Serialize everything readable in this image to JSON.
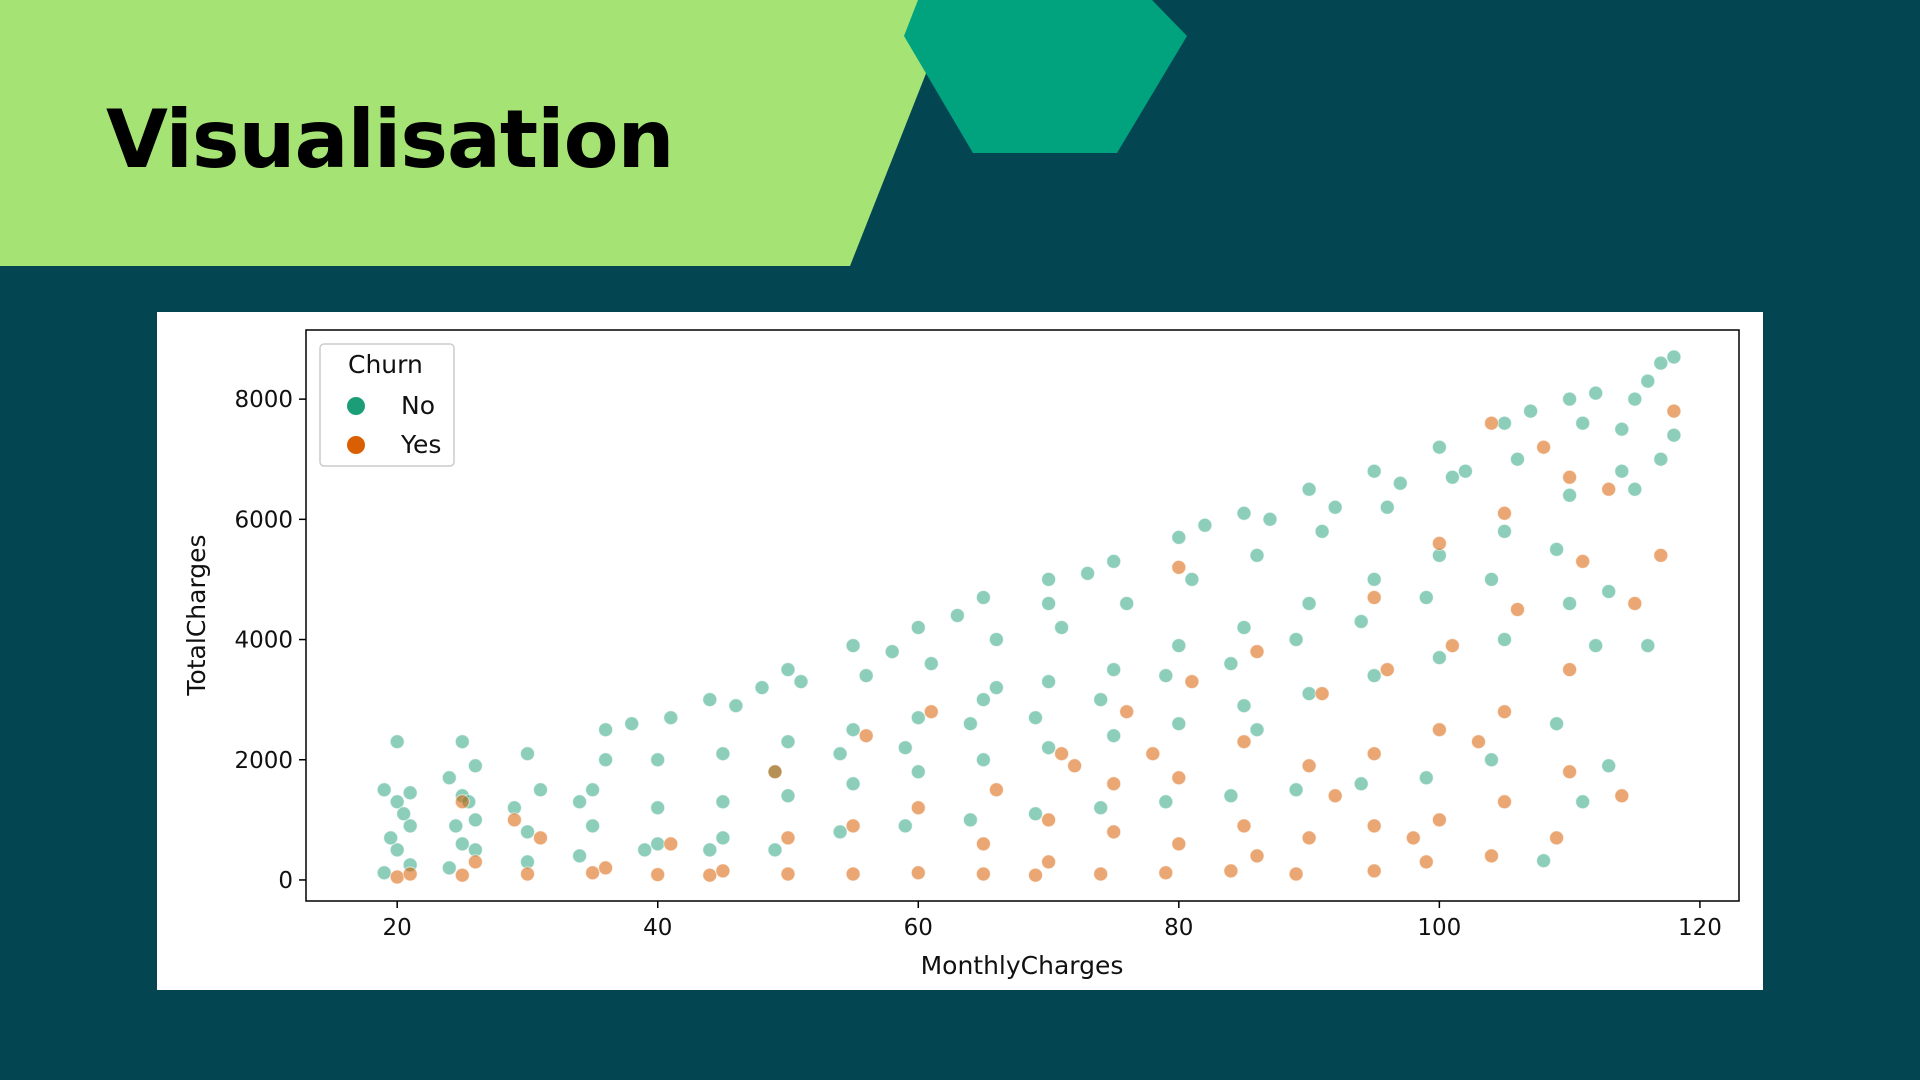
{
  "slide": {
    "title": "Visualisation",
    "colors": {
      "background": "#034652",
      "banner_green": "#a4e374",
      "hexagon": "#00a37e"
    }
  },
  "chart_data": {
    "type": "scatter",
    "title": "",
    "xlabel": "MonthlyCharges",
    "ylabel": "TotalCharges",
    "xlim": [
      13,
      123
    ],
    "ylim": [
      -350,
      9150
    ],
    "xticks": [
      20,
      40,
      60,
      80,
      100,
      120
    ],
    "yticks": [
      0,
      2000,
      4000,
      6000,
      8000
    ],
    "grid": false,
    "legend": {
      "title": "Churn",
      "placement": "top-left"
    },
    "series": [
      {
        "name": "No",
        "color": "#1b9e77",
        "opacity": 0.5,
        "points": [
          [
            19,
            120
          ],
          [
            20,
            500
          ],
          [
            21,
            900
          ],
          [
            20,
            1300
          ],
          [
            19,
            1500
          ],
          [
            21,
            250
          ],
          [
            20,
            2300
          ],
          [
            19.5,
            700
          ],
          [
            20.5,
            1100
          ],
          [
            21,
            1450
          ],
          [
            24,
            200
          ],
          [
            25,
            600
          ],
          [
            26,
            1000
          ],
          [
            25,
            1400
          ],
          [
            24,
            1700
          ],
          [
            26,
            1900
          ],
          [
            25,
            2300
          ],
          [
            24.5,
            900
          ],
          [
            25.5,
            1300
          ],
          [
            26,
            500
          ],
          [
            30,
            300
          ],
          [
            30,
            800
          ],
          [
            29,
            1200
          ],
          [
            31,
            1500
          ],
          [
            30,
            2100
          ],
          [
            34,
            400
          ],
          [
            35,
            900
          ],
          [
            35,
            1500
          ],
          [
            36,
            2000
          ],
          [
            34,
            1300
          ],
          [
            36,
            2500
          ],
          [
            39,
            500
          ],
          [
            40,
            1200
          ],
          [
            40,
            2000
          ],
          [
            41,
            2700
          ],
          [
            40,
            600
          ],
          [
            44,
            500
          ],
          [
            45,
            1300
          ],
          [
            45,
            2100
          ],
          [
            46,
            2900
          ],
          [
            44,
            3000
          ],
          [
            45,
            700
          ],
          [
            49,
            500
          ],
          [
            50,
            1400
          ],
          [
            50,
            2300
          ],
          [
            51,
            3300
          ],
          [
            50,
            3500
          ],
          [
            49,
            1800
          ],
          [
            54,
            800
          ],
          [
            55,
            1600
          ],
          [
            55,
            2500
          ],
          [
            56,
            3400
          ],
          [
            55,
            3900
          ],
          [
            54,
            2100
          ],
          [
            59,
            900
          ],
          [
            60,
            1800
          ],
          [
            60,
            2700
          ],
          [
            61,
            3600
          ],
          [
            60,
            4200
          ],
          [
            59,
            2200
          ],
          [
            64,
            1000
          ],
          [
            65,
            2000
          ],
          [
            65,
            3000
          ],
          [
            66,
            4000
          ],
          [
            65,
            4700
          ],
          [
            64,
            2600
          ],
          [
            69,
            1100
          ],
          [
            70,
            2200
          ],
          [
            70,
            3300
          ],
          [
            71,
            4200
          ],
          [
            70,
            5000
          ],
          [
            69,
            2700
          ],
          [
            74,
            1200
          ],
          [
            75,
            2400
          ],
          [
            75,
            3500
          ],
          [
            76,
            4600
          ],
          [
            75,
            5300
          ],
          [
            74,
            3000
          ],
          [
            79,
            1300
          ],
          [
            80,
            2600
          ],
          [
            80,
            3900
          ],
          [
            81,
            5000
          ],
          [
            80,
            5700
          ],
          [
            79,
            3400
          ],
          [
            84,
            1400
          ],
          [
            85,
            2900
          ],
          [
            85,
            4200
          ],
          [
            86,
            5400
          ],
          [
            85,
            6100
          ],
          [
            84,
            3600
          ],
          [
            89,
            1500
          ],
          [
            90,
            3100
          ],
          [
            90,
            4600
          ],
          [
            91,
            5800
          ],
          [
            90,
            6500
          ],
          [
            89,
            4000
          ],
          [
            94,
            1600
          ],
          [
            95,
            3400
          ],
          [
            95,
            5000
          ],
          [
            96,
            6200
          ],
          [
            95,
            6800
          ],
          [
            94,
            4300
          ],
          [
            99,
            1700
          ],
          [
            100,
            3700
          ],
          [
            100,
            5400
          ],
          [
            101,
            6700
          ],
          [
            100,
            7200
          ],
          [
            99,
            4700
          ],
          [
            104,
            2000
          ],
          [
            105,
            4000
          ],
          [
            105,
            5800
          ],
          [
            106,
            7000
          ],
          [
            105,
            7600
          ],
          [
            104,
            5000
          ],
          [
            109,
            2600
          ],
          [
            110,
            4600
          ],
          [
            110,
            6400
          ],
          [
            111,
            7600
          ],
          [
            110,
            8000
          ],
          [
            109,
            5500
          ],
          [
            113,
            4800
          ],
          [
            114,
            6800
          ],
          [
            115,
            8000
          ],
          [
            116,
            8300
          ],
          [
            117,
            8600
          ],
          [
            118,
            8700
          ],
          [
            117,
            7000
          ],
          [
            114,
            7500
          ],
          [
            112,
            3900
          ],
          [
            116,
            3900
          ],
          [
            108,
            320
          ],
          [
            111,
            1300
          ],
          [
            113,
            1900
          ],
          [
            115,
            6500
          ],
          [
            118,
            7400
          ],
          [
            70,
            4600
          ],
          [
            82,
            5900
          ],
          [
            92,
            6200
          ],
          [
            102,
            6800
          ],
          [
            107,
            7800
          ],
          [
            58,
            3800
          ],
          [
            48,
            3200
          ],
          [
            38,
            2600
          ],
          [
            63,
            4400
          ],
          [
            73,
            5100
          ],
          [
            87,
            6000
          ],
          [
            97,
            6600
          ],
          [
            112,
            8100
          ],
          [
            66,
            3200
          ],
          [
            86,
            2500
          ]
        ]
      },
      {
        "name": "Yes",
        "color": "#d95f02",
        "opacity": 0.55,
        "points": [
          [
            20,
            50
          ],
          [
            21,
            100
          ],
          [
            25,
            80
          ],
          [
            26,
            300
          ],
          [
            25,
            1300
          ],
          [
            29,
            1000
          ],
          [
            30,
            100
          ],
          [
            31,
            700
          ],
          [
            35,
            120
          ],
          [
            36,
            200
          ],
          [
            40,
            90
          ],
          [
            41,
            600
          ],
          [
            44,
            80
          ],
          [
            45,
            150
          ],
          [
            50,
            100
          ],
          [
            50,
            700
          ],
          [
            49,
            1800
          ],
          [
            55,
            100
          ],
          [
            55,
            900
          ],
          [
            56,
            2400
          ],
          [
            60,
            120
          ],
          [
            60,
            1200
          ],
          [
            61,
            2800
          ],
          [
            65,
            100
          ],
          [
            65,
            600
          ],
          [
            69,
            80
          ],
          [
            70,
            300
          ],
          [
            70,
            1000
          ],
          [
            71,
            2100
          ],
          [
            74,
            100
          ],
          [
            75,
            800
          ],
          [
            75,
            1600
          ],
          [
            76,
            2800
          ],
          [
            79,
            120
          ],
          [
            80,
            600
          ],
          [
            80,
            1700
          ],
          [
            81,
            3300
          ],
          [
            80,
            5200
          ],
          [
            84,
            150
          ],
          [
            85,
            900
          ],
          [
            85,
            2300
          ],
          [
            86,
            3800
          ],
          [
            89,
            100
          ],
          [
            90,
            700
          ],
          [
            90,
            1900
          ],
          [
            91,
            3100
          ],
          [
            95,
            150
          ],
          [
            95,
            900
          ],
          [
            95,
            2100
          ],
          [
            96,
            3500
          ],
          [
            95,
            4700
          ],
          [
            99,
            300
          ],
          [
            100,
            1000
          ],
          [
            100,
            2500
          ],
          [
            101,
            3900
          ],
          [
            100,
            5600
          ],
          [
            104,
            400
          ],
          [
            105,
            1300
          ],
          [
            105,
            2800
          ],
          [
            106,
            4500
          ],
          [
            105,
            6100
          ],
          [
            109,
            700
          ],
          [
            110,
            1800
          ],
          [
            110,
            3500
          ],
          [
            111,
            5300
          ],
          [
            110,
            6700
          ],
          [
            114,
            1400
          ],
          [
            115,
            4600
          ],
          [
            117,
            5400
          ],
          [
            118,
            7800
          ],
          [
            108,
            7200
          ],
          [
            104,
            7600
          ],
          [
            113,
            6500
          ],
          [
            66,
            1500
          ],
          [
            86,
            400
          ],
          [
            92,
            1400
          ],
          [
            98,
            700
          ],
          [
            103,
            2300
          ],
          [
            78,
            2100
          ],
          [
            72,
            1900
          ]
        ]
      }
    ]
  }
}
